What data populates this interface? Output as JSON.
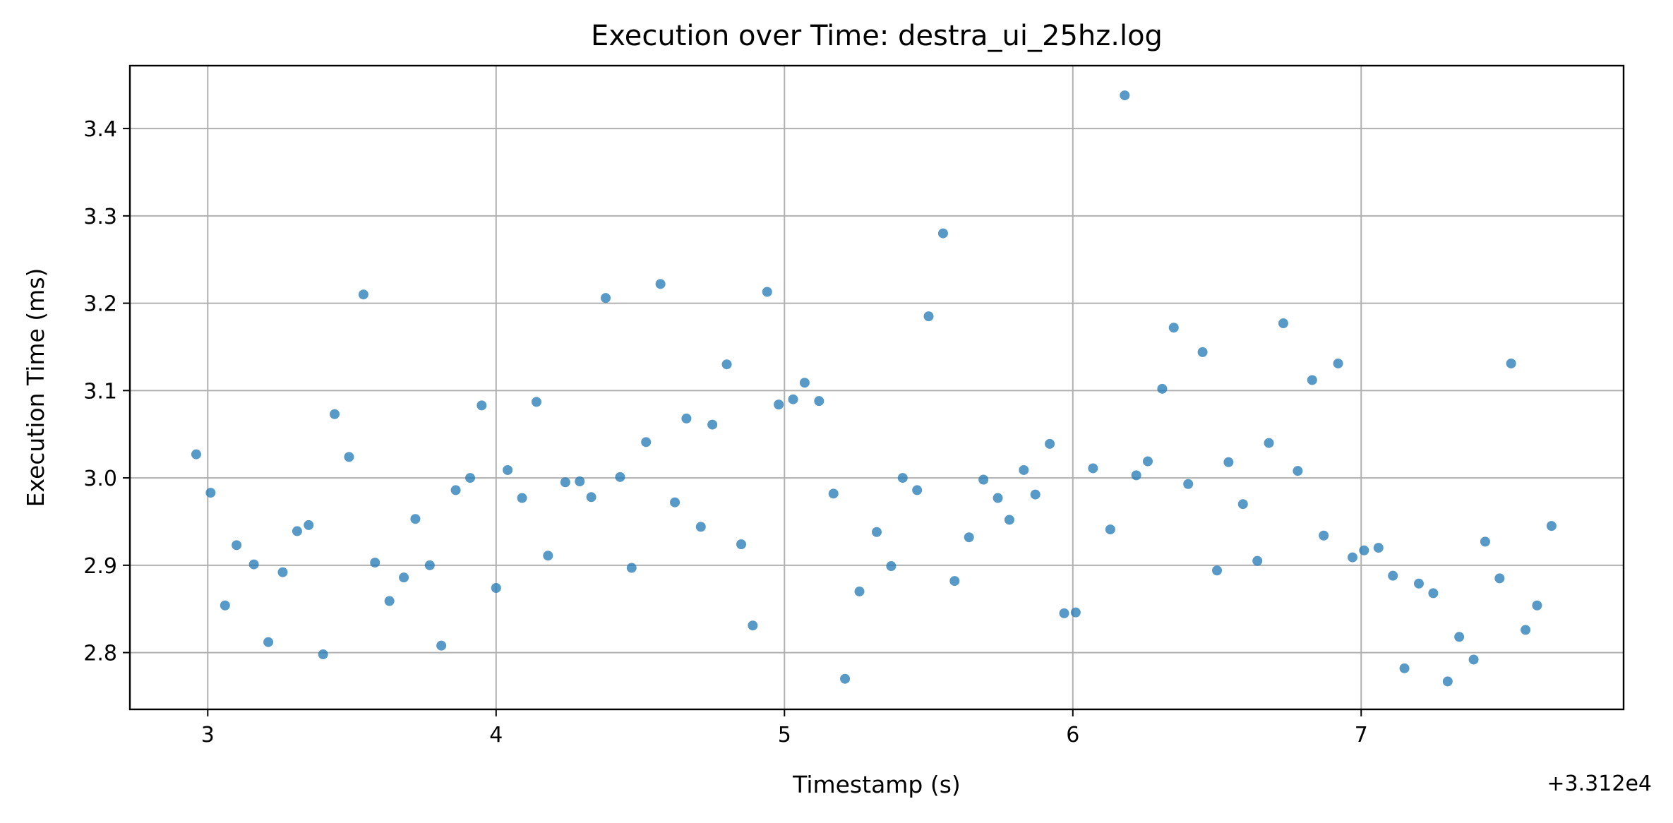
{
  "chart_data": {
    "type": "scatter",
    "title": "Execution over Time: destra_ui_25hz.log",
    "xlabel": "Timestamp (s)",
    "ylabel": "Execution Time (ms)",
    "x_offset_label": "+3.312e4",
    "xlim": [
      2.73,
      7.91
    ],
    "ylim": [
      2.735,
      3.472
    ],
    "xticks": [
      3,
      4,
      5,
      6,
      7
    ],
    "xtick_labels": [
      "3",
      "4",
      "5",
      "6",
      "7"
    ],
    "yticks": [
      2.8,
      2.9,
      3.0,
      3.1,
      3.2,
      3.3,
      3.4
    ],
    "ytick_labels": [
      "2.8",
      "2.9",
      "3.0",
      "3.1",
      "3.2",
      "3.3",
      "3.4"
    ],
    "grid": true,
    "marker_color": "#1f77b4",
    "points": [
      [
        2.96,
        3.027
      ],
      [
        3.01,
        2.983
      ],
      [
        3.06,
        2.854
      ],
      [
        3.1,
        2.923
      ],
      [
        3.16,
        2.901
      ],
      [
        3.21,
        2.812
      ],
      [
        3.26,
        2.892
      ],
      [
        3.31,
        2.939
      ],
      [
        3.35,
        2.946
      ],
      [
        3.4,
        2.798
      ],
      [
        3.44,
        3.073
      ],
      [
        3.49,
        3.024
      ],
      [
        3.54,
        3.21
      ],
      [
        3.58,
        2.903
      ],
      [
        3.63,
        2.859
      ],
      [
        3.68,
        2.886
      ],
      [
        3.72,
        2.953
      ],
      [
        3.77,
        2.9
      ],
      [
        3.81,
        2.808
      ],
      [
        3.86,
        2.986
      ],
      [
        3.91,
        3.0
      ],
      [
        3.95,
        3.083
      ],
      [
        4.0,
        2.874
      ],
      [
        4.04,
        3.009
      ],
      [
        4.09,
        2.977
      ],
      [
        4.14,
        3.087
      ],
      [
        4.18,
        2.911
      ],
      [
        4.24,
        2.995
      ],
      [
        4.29,
        2.996
      ],
      [
        4.33,
        2.978
      ],
      [
        4.38,
        3.206
      ],
      [
        4.43,
        3.001
      ],
      [
        4.47,
        2.897
      ],
      [
        4.52,
        3.041
      ],
      [
        4.57,
        3.222
      ],
      [
        4.62,
        2.972
      ],
      [
        4.66,
        3.068
      ],
      [
        4.71,
        2.944
      ],
      [
        4.75,
        3.061
      ],
      [
        4.8,
        3.13
      ],
      [
        4.85,
        2.924
      ],
      [
        4.89,
        2.831
      ],
      [
        4.94,
        3.213
      ],
      [
        4.98,
        3.084
      ],
      [
        5.03,
        3.09
      ],
      [
        5.07,
        3.109
      ],
      [
        5.12,
        3.088
      ],
      [
        5.17,
        2.982
      ],
      [
        5.21,
        2.77
      ],
      [
        5.26,
        2.87
      ],
      [
        5.32,
        2.938
      ],
      [
        5.37,
        2.899
      ],
      [
        5.41,
        3.0
      ],
      [
        5.46,
        2.986
      ],
      [
        5.5,
        3.185
      ],
      [
        5.55,
        3.28
      ],
      [
        5.59,
        2.882
      ],
      [
        5.64,
        2.932
      ],
      [
        5.69,
        2.998
      ],
      [
        5.74,
        2.977
      ],
      [
        5.78,
        2.952
      ],
      [
        5.83,
        3.009
      ],
      [
        5.87,
        2.981
      ],
      [
        5.92,
        3.039
      ],
      [
        5.97,
        2.845
      ],
      [
        6.01,
        2.846
      ],
      [
        6.07,
        3.011
      ],
      [
        6.13,
        2.941
      ],
      [
        6.18,
        3.438
      ],
      [
        6.22,
        3.003
      ],
      [
        6.26,
        3.019
      ],
      [
        6.31,
        3.102
      ],
      [
        6.35,
        3.172
      ],
      [
        6.4,
        2.993
      ],
      [
        6.45,
        3.144
      ],
      [
        6.5,
        2.894
      ],
      [
        6.54,
        3.018
      ],
      [
        6.59,
        2.97
      ],
      [
        6.64,
        2.905
      ],
      [
        6.68,
        3.04
      ],
      [
        6.73,
        3.177
      ],
      [
        6.78,
        3.008
      ],
      [
        6.83,
        3.112
      ],
      [
        6.87,
        2.934
      ],
      [
        6.92,
        3.131
      ],
      [
        6.97,
        2.909
      ],
      [
        7.01,
        2.917
      ],
      [
        7.06,
        2.92
      ],
      [
        7.11,
        2.888
      ],
      [
        7.15,
        2.782
      ],
      [
        7.2,
        2.879
      ],
      [
        7.25,
        2.868
      ],
      [
        7.3,
        2.767
      ],
      [
        7.34,
        2.818
      ],
      [
        7.39,
        2.792
      ],
      [
        7.43,
        2.927
      ],
      [
        7.48,
        2.885
      ],
      [
        7.52,
        3.131
      ],
      [
        7.57,
        2.826
      ],
      [
        7.61,
        2.854
      ],
      [
        7.66,
        2.945
      ]
    ]
  }
}
